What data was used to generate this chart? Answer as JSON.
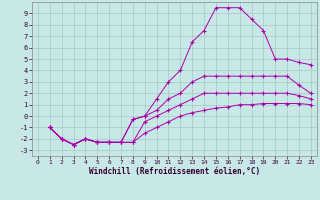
{
  "background_color": "#c8e8e8",
  "grid_color": "#a8c8c8",
  "line_color": "#aa00aa",
  "xlabel": "Windchill (Refroidissement éolien,°C)",
  "xlim": [
    -0.5,
    23.5
  ],
  "ylim": [
    -3.5,
    10
  ],
  "xticks": [
    0,
    1,
    2,
    3,
    4,
    5,
    6,
    7,
    8,
    9,
    10,
    11,
    12,
    13,
    14,
    15,
    16,
    17,
    18,
    19,
    20,
    21,
    22,
    23
  ],
  "yticks": [
    -3,
    -2,
    -1,
    0,
    1,
    2,
    3,
    4,
    5,
    6,
    7,
    8,
    9
  ],
  "line1_x": [
    1,
    2,
    3,
    4,
    5,
    6,
    7,
    8,
    9,
    10,
    11,
    12,
    13,
    14,
    15,
    16,
    17,
    18,
    19,
    20,
    21,
    22,
    23
  ],
  "line1_y": [
    -1,
    -2,
    -2.5,
    -2,
    -2.3,
    -2.3,
    -2.3,
    -2.3,
    -1.5,
    -1,
    -0.5,
    0,
    0.3,
    0.5,
    0.7,
    0.8,
    1.0,
    1.0,
    1.1,
    1.1,
    1.1,
    1.1,
    1.0
  ],
  "line2_x": [
    1,
    2,
    3,
    4,
    5,
    6,
    7,
    8,
    9,
    10,
    11,
    12,
    13,
    14,
    15,
    16,
    17,
    18,
    19,
    20,
    21,
    22,
    23
  ],
  "line2_y": [
    -1,
    -2,
    -2.5,
    -2,
    -2.3,
    -2.3,
    -2.3,
    -2.3,
    -0.5,
    0,
    0.5,
    1,
    1.5,
    2.0,
    2.0,
    2.0,
    2.0,
    2.0,
    2.0,
    2.0,
    2.0,
    1.8,
    1.5
  ],
  "line3_x": [
    1,
    2,
    3,
    4,
    5,
    6,
    7,
    8,
    9,
    10,
    11,
    12,
    13,
    14,
    15,
    16,
    17,
    18,
    19,
    20,
    21,
    22,
    23
  ],
  "line3_y": [
    -1,
    -2,
    -2.5,
    -2,
    -2.3,
    -2.3,
    -2.3,
    -0.3,
    0,
    0.5,
    1.5,
    2,
    3,
    3.5,
    3.5,
    3.5,
    3.5,
    3.5,
    3.5,
    3.5,
    3.5,
    2.7,
    2.0
  ],
  "line4_x": [
    1,
    2,
    3,
    4,
    5,
    6,
    7,
    8,
    9,
    10,
    11,
    12,
    13,
    14,
    15,
    16,
    17,
    18,
    19,
    20,
    21,
    22,
    23
  ],
  "line4_y": [
    -1,
    -2,
    -2.5,
    -2,
    -2.3,
    -2.3,
    -2.3,
    -0.3,
    0,
    1.5,
    3,
    4,
    6.5,
    7.5,
    9.5,
    9.5,
    9.5,
    8.5,
    7.5,
    5.0,
    5.0,
    4.7,
    4.5
  ]
}
